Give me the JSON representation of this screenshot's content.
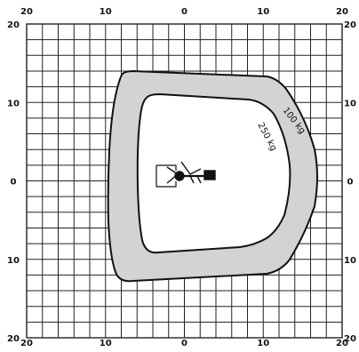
{
  "diagram": {
    "axis_ticks": {
      "top": [
        "20",
        "10",
        "0",
        "10",
        "20"
      ],
      "bottom": [
        "20",
        "10",
        "0",
        "10",
        "20"
      ],
      "left": [
        "20",
        "10",
        "0",
        "10",
        "20"
      ],
      "right": [
        "20",
        "10",
        "0",
        "10",
        "20"
      ]
    },
    "zones": [
      {
        "label": "100 kg",
        "fill": "#d3d3d3"
      },
      {
        "label": "250 kg",
        "fill": "#ffffff"
      }
    ],
    "colors": {
      "grid": "#222222",
      "outline": "#111111",
      "zone_fill": "#d3d3d3"
    }
  }
}
